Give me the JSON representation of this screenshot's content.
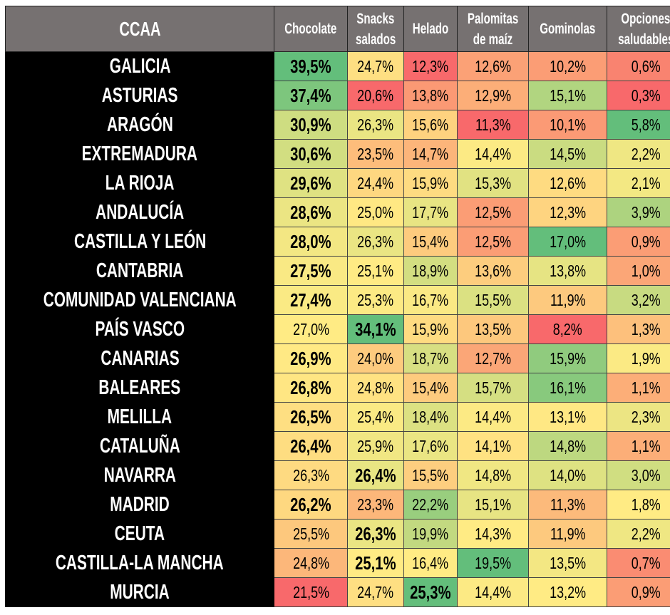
{
  "chart_data": {
    "type": "table",
    "columns": [
      "CCAA",
      "Chocolate",
      "Snacks salados",
      "Helado",
      "Palomitas de maíz",
      "Gominolas",
      "Opciones saludables"
    ],
    "header_lines": [
      [
        "CCAA"
      ],
      [
        "Chocolate"
      ],
      [
        "Snacks",
        "salados"
      ],
      [
        "Helado"
      ],
      [
        "Palomitas",
        "de maíz"
      ],
      [
        "Gominolas"
      ],
      [
        "Opciones",
        "saludables"
      ]
    ],
    "rows": [
      {
        "name": "GALICIA",
        "values": [
          "39,5%",
          "24,7%",
          "12,3%",
          "12,6%",
          "10,2%",
          "0,6%"
        ]
      },
      {
        "name": "ASTURIAS",
        "values": [
          "37,4%",
          "20,6%",
          "13,8%",
          "12,9%",
          "15,1%",
          "0,3%"
        ]
      },
      {
        "name": "ARAGÓN",
        "values": [
          "30,9%",
          "26,3%",
          "15,6%",
          "11,3%",
          "10,1%",
          "5,8%"
        ]
      },
      {
        "name": "EXTREMADURA",
        "values": [
          "30,6%",
          "23,5%",
          "14,7%",
          "14,4%",
          "14,5%",
          "2,2%"
        ]
      },
      {
        "name": "LA RIOJA",
        "values": [
          "29,6%",
          "24,4%",
          "15,9%",
          "15,3%",
          "12,6%",
          "2,1%"
        ]
      },
      {
        "name": "ANDALUCÍA",
        "values": [
          "28,6%",
          "25,0%",
          "17,7%",
          "12,5%",
          "12,3%",
          "3,9%"
        ]
      },
      {
        "name": "CASTILLA Y LEÓN",
        "values": [
          "28,0%",
          "26,3%",
          "15,4%",
          "12,5%",
          "17,0%",
          "0,9%"
        ]
      },
      {
        "name": "CANTABRIA",
        "values": [
          "27,5%",
          "25,1%",
          "18,9%",
          "13,6%",
          "13,8%",
          "1,0%"
        ]
      },
      {
        "name": "COMUNIDAD VALENCIANA",
        "values": [
          "27,4%",
          "25,3%",
          "16,7%",
          "15,5%",
          "11,9%",
          "3,2%"
        ]
      },
      {
        "name": "PAÍS VASCO",
        "values": [
          "27,0%",
          "34,1%",
          "15,9%",
          "13,5%",
          "8,2%",
          "1,3%"
        ]
      },
      {
        "name": "CANARIAS",
        "values": [
          "26,9%",
          "24,0%",
          "18,7%",
          "12,7%",
          "15,9%",
          "1,9%"
        ]
      },
      {
        "name": "BALEARES",
        "values": [
          "26,8%",
          "24,8%",
          "15,4%",
          "15,7%",
          "16,1%",
          "1,1%"
        ]
      },
      {
        "name": "MELILLA",
        "values": [
          "26,5%",
          "25,4%",
          "18,4%",
          "14,4%",
          "13,1%",
          "2,3%"
        ]
      },
      {
        "name": "CATALUÑA",
        "values": [
          "26,4%",
          "25,9%",
          "17,6%",
          "14,1%",
          "14,8%",
          "1,1%"
        ]
      },
      {
        "name": "NAVARRA",
        "values": [
          "26,3%",
          "26,4%",
          "15,5%",
          "14,8%",
          "14,0%",
          "3,0%"
        ]
      },
      {
        "name": "MADRID",
        "values": [
          "26,2%",
          "23,3%",
          "22,2%",
          "15,1%",
          "11,3%",
          "1,8%"
        ]
      },
      {
        "name": "CEUTA",
        "values": [
          "25,5%",
          "26,3%",
          "19,9%",
          "14,3%",
          "11,9%",
          "2,2%"
        ]
      },
      {
        "name": "CASTILLA-LA MANCHA",
        "values": [
          "24,8%",
          "25,1%",
          "16,4%",
          "19,5%",
          "13,5%",
          "0,7%"
        ]
      },
      {
        "name": "MURCIA",
        "values": [
          "21,5%",
          "24,7%",
          "25,3%",
          "14,4%",
          "13,2%",
          "0,9%"
        ]
      }
    ],
    "color_scale": {
      "low": "#F8696B",
      "mid": "#FFEB84",
      "high": "#63BE7B"
    }
  }
}
